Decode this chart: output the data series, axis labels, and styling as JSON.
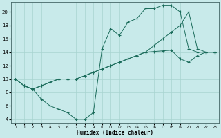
{
  "xlabel": "Humidex (Indice chaleur)",
  "bg_color": "#c8eaea",
  "grid_color": "#a8d4d0",
  "line_color": "#1a6b5a",
  "xlim": [
    -0.5,
    23.5
  ],
  "ylim": [
    3.5,
    21.5
  ],
  "xticks": [
    0,
    1,
    2,
    3,
    4,
    5,
    6,
    7,
    8,
    9,
    10,
    11,
    12,
    13,
    14,
    15,
    16,
    17,
    18,
    19,
    20,
    21,
    22,
    23
  ],
  "yticks": [
    4,
    6,
    8,
    10,
    12,
    14,
    16,
    18,
    20
  ],
  "line1": {
    "x": [
      0,
      1,
      2,
      3,
      4,
      5,
      6,
      7,
      8,
      9,
      10,
      11,
      12,
      13,
      14,
      15,
      16,
      17,
      18,
      19,
      20,
      21,
      22,
      23
    ],
    "y": [
      10,
      9,
      8.5,
      7,
      6,
      5.5,
      5,
      4,
      4,
      5,
      14.5,
      17.5,
      16.5,
      18.5,
      19,
      20.5,
      20.5,
      21,
      21,
      20,
      14.5,
      14,
      14,
      14
    ]
  },
  "line2": {
    "x": [
      0,
      1,
      2,
      3,
      4,
      5,
      6,
      7,
      8,
      9,
      10,
      11,
      12,
      13,
      14,
      15,
      16,
      17,
      18,
      19,
      20,
      21,
      22,
      23
    ],
    "y": [
      10,
      9,
      8.5,
      9,
      9.5,
      10,
      10,
      10,
      10.5,
      11,
      11.5,
      12,
      12.5,
      13,
      13.5,
      14,
      15,
      16,
      17,
      18,
      20,
      14.5,
      14,
      14
    ]
  },
  "line3": {
    "x": [
      0,
      1,
      2,
      3,
      4,
      5,
      6,
      7,
      8,
      9,
      10,
      11,
      12,
      13,
      14,
      15,
      16,
      17,
      18,
      19,
      20,
      21,
      22,
      23
    ],
    "y": [
      10,
      9,
      8.5,
      9,
      9.5,
      10,
      10,
      10,
      10.5,
      11,
      11.5,
      12,
      12.5,
      13,
      13.5,
      14,
      14.1,
      14.2,
      14.3,
      13,
      12.5,
      13.5,
      14,
      14
    ]
  }
}
